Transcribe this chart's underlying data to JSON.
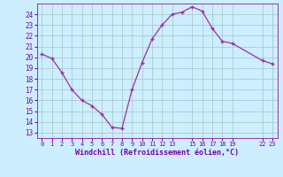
{
  "x": [
    0,
    1,
    2,
    3,
    4,
    5,
    6,
    7,
    8,
    9,
    10,
    11,
    12,
    13,
    14,
    15,
    16,
    17,
    18,
    19,
    22,
    23
  ],
  "y": [
    20.3,
    19.9,
    18.6,
    17.0,
    16.0,
    15.5,
    14.7,
    13.5,
    13.4,
    17.0,
    19.5,
    21.7,
    23.0,
    24.0,
    24.2,
    24.7,
    24.3,
    22.7,
    21.5,
    21.3,
    19.7,
    19.4
  ],
  "xticks": [
    0,
    1,
    2,
    3,
    4,
    5,
    6,
    7,
    8,
    9,
    10,
    11,
    12,
    13,
    15,
    16,
    17,
    18,
    19,
    22,
    23
  ],
  "xtick_labels": [
    "0",
    "1",
    "2",
    "3",
    "4",
    "5",
    "6",
    "7",
    "8",
    "9",
    "10",
    "11",
    "12",
    "13",
    "15",
    "16",
    "17",
    "18",
    "19",
    "22",
    "23"
  ],
  "yticks": [
    13,
    14,
    15,
    16,
    17,
    18,
    19,
    20,
    21,
    22,
    23,
    24
  ],
  "ylim": [
    12.5,
    25.0
  ],
  "xlim": [
    -0.5,
    23.5
  ],
  "xlabel": "Windchill (Refroidissement éolien,°C)",
  "line_color": "#993399",
  "marker": "+",
  "bg_color": "#cceeff",
  "grid_color": "#aacccc",
  "xlabel_color": "#7700aa",
  "tick_color": "#7700aa",
  "spine_color": "#9933aa"
}
